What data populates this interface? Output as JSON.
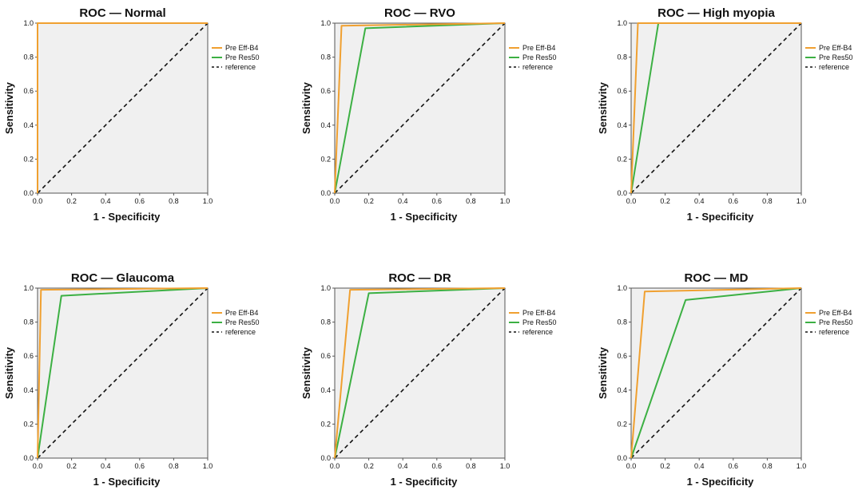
{
  "chart_data": [
    {
      "type": "line",
      "title": "ROC — Normal",
      "xlabel": "1 - Specificity",
      "ylabel": "Sensitivity",
      "xlim": [
        0,
        1
      ],
      "ylim": [
        0,
        1
      ],
      "xticks": [
        "0.0",
        "0.2",
        "0.4",
        "0.6",
        "0.8",
        "1.0"
      ],
      "yticks": [
        "0.0",
        "0.2",
        "0.4",
        "0.6",
        "0.8",
        "1.0"
      ],
      "legend": [
        "Pre Eff-B4",
        "Pre Res50",
        "reference"
      ],
      "series": [
        {
          "name": "Pre Eff-B4",
          "x": [
            0,
            0,
            1
          ],
          "y": [
            0,
            1,
            1
          ]
        },
        {
          "name": "Pre Res50",
          "x": [
            0,
            0,
            1
          ],
          "y": [
            0,
            1,
            1
          ]
        },
        {
          "name": "reference",
          "x": [
            0,
            1
          ],
          "y": [
            0,
            1
          ]
        }
      ]
    },
    {
      "type": "line",
      "title": "ROC — RVO",
      "xlabel": "1 - Specificity",
      "ylabel": "Sensitivity",
      "xlim": [
        0,
        1
      ],
      "ylim": [
        0,
        1
      ],
      "xticks": [
        "0.0",
        "0.2",
        "0.4",
        "0.6",
        "0.8",
        "1.0"
      ],
      "yticks": [
        "0.0",
        "0.2",
        "0.4",
        "0.6",
        "0.8",
        "1.0"
      ],
      "legend": [
        "Pre Eff-B4",
        "Pre Res50",
        "reference"
      ],
      "series": [
        {
          "name": "Pre Eff-B4",
          "x": [
            0,
            0.04,
            1
          ],
          "y": [
            0,
            0.985,
            1
          ]
        },
        {
          "name": "Pre Res50",
          "x": [
            0,
            0.18,
            1
          ],
          "y": [
            0,
            0.97,
            1
          ]
        },
        {
          "name": "reference",
          "x": [
            0,
            1
          ],
          "y": [
            0,
            1
          ]
        }
      ]
    },
    {
      "type": "line",
      "title": "ROC — High myopia",
      "xlabel": "1 - Specificity",
      "ylabel": "Sensitivity",
      "xlim": [
        0,
        1
      ],
      "ylim": [
        0,
        1
      ],
      "xticks": [
        "0.0",
        "0.2",
        "0.4",
        "0.6",
        "0.8",
        "1.0"
      ],
      "yticks": [
        "0.0",
        "0.2",
        "0.4",
        "0.6",
        "0.8",
        "1.0"
      ],
      "legend": [
        "Pre Eff-B4",
        "Pre Res50",
        "reference"
      ],
      "series": [
        {
          "name": "Pre Eff-B4",
          "x": [
            0,
            0.04,
            1
          ],
          "y": [
            0,
            1,
            1
          ]
        },
        {
          "name": "Pre Res50",
          "x": [
            0,
            0.16,
            1
          ],
          "y": [
            0,
            1,
            1
          ]
        },
        {
          "name": "reference",
          "x": [
            0,
            1
          ],
          "y": [
            0,
            1
          ]
        }
      ]
    },
    {
      "type": "line",
      "title": "ROC — Glaucoma",
      "xlabel": "1 - Specificity",
      "ylabel": "Sensitivity",
      "xlim": [
        0,
        1
      ],
      "ylim": [
        0,
        1
      ],
      "xticks": [
        "0.0",
        "0.2",
        "0.4",
        "0.6",
        "0.8",
        "1.0"
      ],
      "yticks": [
        "0.0",
        "0.2",
        "0.4",
        "0.6",
        "0.8",
        "1.0"
      ],
      "legend": [
        "Pre Eff-B4",
        "Pre Res50",
        "reference"
      ],
      "series": [
        {
          "name": "Pre Eff-B4",
          "x": [
            0,
            0.02,
            1
          ],
          "y": [
            0,
            0.99,
            1
          ]
        },
        {
          "name": "Pre Res50",
          "x": [
            0,
            0.14,
            1
          ],
          "y": [
            0,
            0.955,
            1
          ]
        },
        {
          "name": "reference",
          "x": [
            0,
            1
          ],
          "y": [
            0,
            1
          ]
        }
      ]
    },
    {
      "type": "line",
      "title": "ROC — DR",
      "xlabel": "1 - Specificity",
      "ylabel": "Sensitivity",
      "xlim": [
        0,
        1
      ],
      "ylim": [
        0,
        1
      ],
      "xticks": [
        "0.0",
        "0.2",
        "0.4",
        "0.6",
        "0.8",
        "1.0"
      ],
      "yticks": [
        "0.0",
        "0.2",
        "0.4",
        "0.6",
        "0.8",
        "1.0"
      ],
      "legend": [
        "Pre Eff-B4",
        "Pre Res50",
        "reference"
      ],
      "series": [
        {
          "name": "Pre Eff-B4",
          "x": [
            0,
            0.09,
            1
          ],
          "y": [
            0,
            0.99,
            1
          ]
        },
        {
          "name": "Pre Res50",
          "x": [
            0,
            0.2,
            1
          ],
          "y": [
            0,
            0.97,
            1
          ]
        },
        {
          "name": "reference",
          "x": [
            0,
            1
          ],
          "y": [
            0,
            1
          ]
        }
      ]
    },
    {
      "type": "line",
      "title": "ROC — MD",
      "xlabel": "1 - Specificity",
      "ylabel": "Sensitivity",
      "xlim": [
        0,
        1
      ],
      "ylim": [
        0,
        1
      ],
      "xticks": [
        "0.0",
        "0.2",
        "0.4",
        "0.6",
        "0.8",
        "1.0"
      ],
      "yticks": [
        "0.0",
        "0.2",
        "0.4",
        "0.6",
        "0.8",
        "1.0"
      ],
      "legend": [
        "Pre Eff-B4",
        "Pre Res50",
        "reference"
      ],
      "series": [
        {
          "name": "Pre Eff-B4",
          "x": [
            0,
            0.08,
            1
          ],
          "y": [
            0,
            0.98,
            1
          ]
        },
        {
          "name": "Pre Res50",
          "x": [
            0,
            0.32,
            1
          ],
          "y": [
            0,
            0.93,
            1
          ]
        },
        {
          "name": "reference",
          "x": [
            0,
            1
          ],
          "y": [
            0,
            1
          ]
        }
      ]
    }
  ],
  "colors": {
    "Pre Eff-B4": "#f0a030",
    "Pre Res50": "#3cb043",
    "reference": "#111111",
    "plot_background": "#f0f0f0",
    "frame": "#555555"
  }
}
